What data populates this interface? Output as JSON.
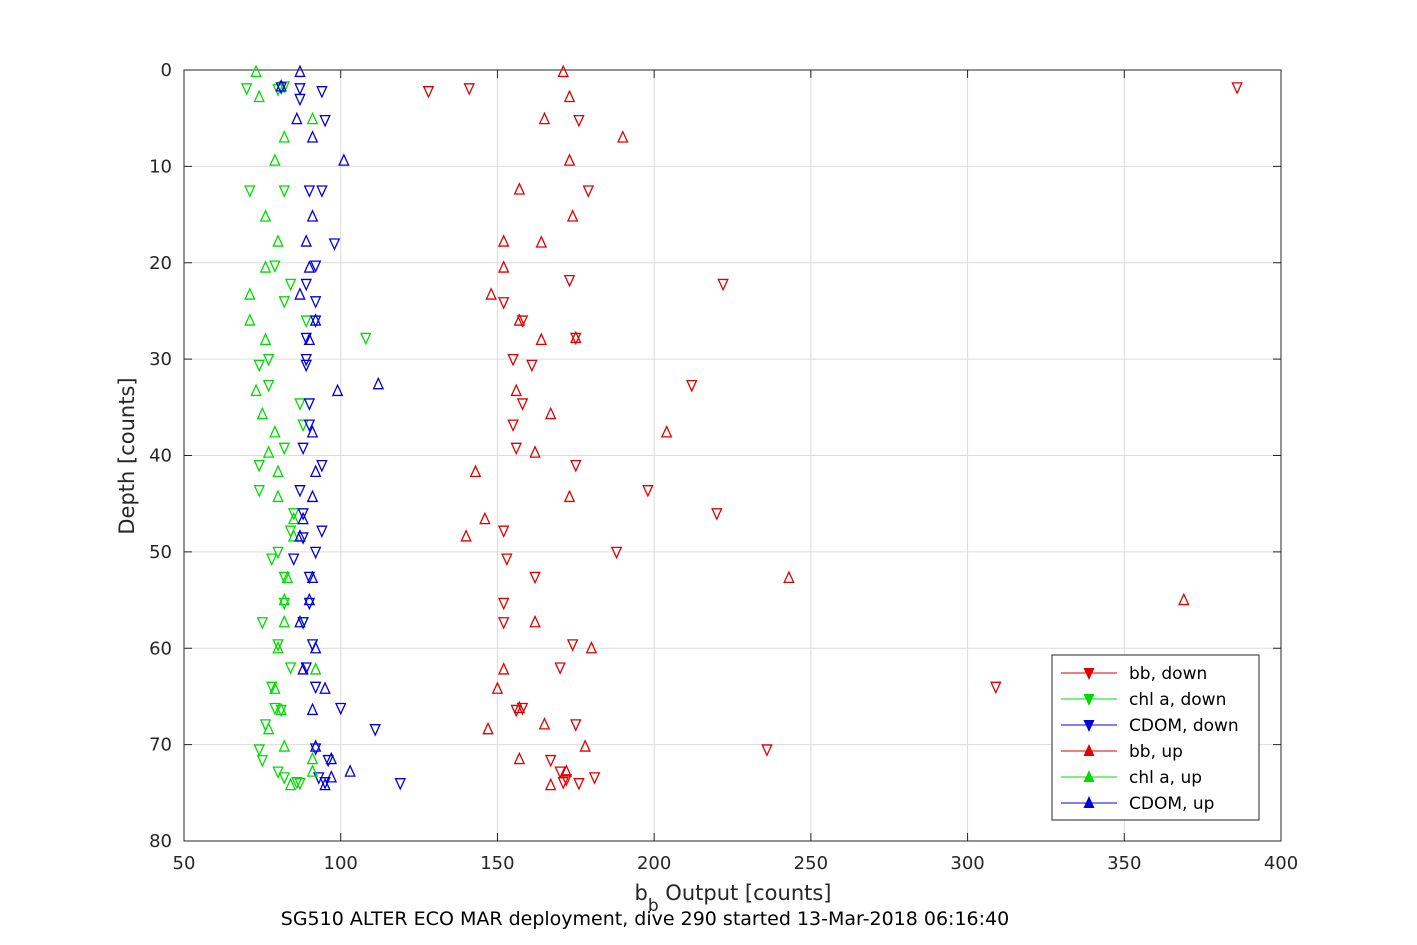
{
  "chart_data": {
    "type": "scatter",
    "xlabel_main": "b",
    "xlabel_sub": "b",
    "xlabel_rest": " Output [counts]",
    "ylabel": "Depth [counts]",
    "caption": "SG510 ALTER ECO MAR deployment, dive 290 started 13-Mar-2018 06:16:40",
    "xlim": [
      50,
      400
    ],
    "ylim": [
      0,
      80
    ],
    "y_reversed": true,
    "grid": true,
    "legend_position": "lower-right",
    "xticks": [
      "50",
      "100",
      "150",
      "200",
      "250",
      "300",
      "350",
      "400"
    ],
    "yticks": [
      "0",
      "10",
      "20",
      "30",
      "40",
      "50",
      "60",
      "70",
      "80"
    ],
    "series": [
      {
        "name": "bb, down",
        "color": "#e00000",
        "marker": "triangle-down",
        "points": [
          [
            386,
            1.8
          ],
          [
            128,
            2.2
          ],
          [
            141,
            1.9
          ],
          [
            176,
            5.2
          ],
          [
            179,
            12.5
          ],
          [
            173,
            21.8
          ],
          [
            222,
            22.2
          ],
          [
            158,
            26.0
          ],
          [
            152,
            24.1
          ],
          [
            175,
            27.8
          ],
          [
            155,
            30.0
          ],
          [
            161,
            30.6
          ],
          [
            212,
            32.7
          ],
          [
            158,
            34.6
          ],
          [
            155,
            36.8
          ],
          [
            156,
            39.2
          ],
          [
            175,
            41.0
          ],
          [
            198,
            43.6
          ],
          [
            220,
            46.0
          ],
          [
            152,
            47.8
          ],
          [
            188,
            50.0
          ],
          [
            153,
            50.7
          ],
          [
            162,
            52.6
          ],
          [
            152,
            55.3
          ],
          [
            152,
            57.3
          ],
          [
            174,
            59.6
          ],
          [
            170,
            62.0
          ],
          [
            309,
            64.0
          ],
          [
            158,
            66.2
          ],
          [
            156,
            66.4
          ],
          [
            175,
            67.9
          ],
          [
            236,
            70.5
          ],
          [
            167,
            71.6
          ],
          [
            170,
            72.8
          ],
          [
            181,
            73.4
          ],
          [
            172,
            73.6
          ],
          [
            171,
            73.9
          ],
          [
            176,
            74.0
          ]
        ]
      },
      {
        "name": "chl a, down",
        "color": "#00dc00",
        "marker": "triangle-down",
        "points": [
          [
            70,
            1.9
          ],
          [
            80,
            2.0
          ],
          [
            82,
            1.7
          ],
          [
            71,
            12.5
          ],
          [
            82,
            12.5
          ],
          [
            79,
            20.3
          ],
          [
            84,
            22.2
          ],
          [
            82,
            24.0
          ],
          [
            89,
            26.0
          ],
          [
            108,
            27.8
          ],
          [
            77,
            30.0
          ],
          [
            74,
            30.6
          ],
          [
            77,
            32.7
          ],
          [
            87,
            34.6
          ],
          [
            88,
            36.8
          ],
          [
            82,
            39.2
          ],
          [
            74,
            41.0
          ],
          [
            74,
            43.6
          ],
          [
            85,
            46.0
          ],
          [
            84,
            47.8
          ],
          [
            80,
            50.0
          ],
          [
            78,
            50.7
          ],
          [
            82,
            52.6
          ],
          [
            82,
            55.3
          ],
          [
            75,
            57.3
          ],
          [
            88,
            57.3
          ],
          [
            80,
            59.6
          ],
          [
            84,
            62.0
          ],
          [
            78,
            64.0
          ],
          [
            79,
            66.2
          ],
          [
            81,
            66.4
          ],
          [
            76,
            67.9
          ],
          [
            74,
            70.5
          ],
          [
            75,
            71.6
          ],
          [
            80,
            72.8
          ],
          [
            82,
            73.4
          ],
          [
            86,
            73.9
          ],
          [
            87,
            74.0
          ]
        ]
      },
      {
        "name": "CDOM, down",
        "color": "#0000dc",
        "marker": "triangle-down",
        "points": [
          [
            81,
            1.8
          ],
          [
            87,
            1.9
          ],
          [
            94,
            2.2
          ],
          [
            87,
            3.0
          ],
          [
            95,
            5.2
          ],
          [
            94,
            12.5
          ],
          [
            90,
            12.5
          ],
          [
            98,
            18.0
          ],
          [
            92,
            20.3
          ],
          [
            89,
            22.2
          ],
          [
            92,
            24.0
          ],
          [
            92,
            26.0
          ],
          [
            89,
            27.8
          ],
          [
            89,
            30.0
          ],
          [
            89,
            30.6
          ],
          [
            90,
            34.6
          ],
          [
            90,
            36.8
          ],
          [
            88,
            39.2
          ],
          [
            94,
            41.0
          ],
          [
            87,
            43.6
          ],
          [
            88,
            46.0
          ],
          [
            94,
            47.8
          ],
          [
            88,
            48.5
          ],
          [
            92,
            50.0
          ],
          [
            85,
            50.7
          ],
          [
            90,
            52.6
          ],
          [
            90,
            55.3
          ],
          [
            88,
            57.3
          ],
          [
            91,
            59.6
          ],
          [
            89,
            62.0
          ],
          [
            92,
            64.0
          ],
          [
            100,
            66.2
          ],
          [
            111,
            68.4
          ],
          [
            92,
            70.4
          ],
          [
            96,
            71.6
          ],
          [
            93,
            73.4
          ],
          [
            95,
            73.9
          ],
          [
            119,
            74.0
          ]
        ]
      },
      {
        "name": "bb, up",
        "color": "#e00000",
        "marker": "triangle-up",
        "points": [
          [
            171,
            0.2
          ],
          [
            173,
            2.8
          ],
          [
            165,
            5.1
          ],
          [
            190,
            7.0
          ],
          [
            173,
            9.4
          ],
          [
            157,
            12.4
          ],
          [
            174,
            15.2
          ],
          [
            152,
            17.8
          ],
          [
            164,
            17.9
          ],
          [
            152,
            20.5
          ],
          [
            148,
            23.3
          ],
          [
            157,
            26.0
          ],
          [
            164,
            28.0
          ],
          [
            175,
            27.8
          ],
          [
            167,
            35.7
          ],
          [
            156,
            33.3
          ],
          [
            204,
            37.6
          ],
          [
            162,
            39.7
          ],
          [
            143,
            41.7
          ],
          [
            173,
            44.3
          ],
          [
            146,
            46.6
          ],
          [
            140,
            48.4
          ],
          [
            243,
            52.7
          ],
          [
            369,
            55.0
          ],
          [
            162,
            57.3
          ],
          [
            180,
            60.0
          ],
          [
            152,
            62.2
          ],
          [
            150,
            64.2
          ],
          [
            157,
            66.2
          ],
          [
            147,
            68.4
          ],
          [
            165,
            67.9
          ],
          [
            178,
            70.2
          ],
          [
            157,
            71.5
          ],
          [
            172,
            72.8
          ],
          [
            167,
            74.2
          ]
        ]
      },
      {
        "name": "chl a, up",
        "color": "#00dc00",
        "marker": "triangle-up",
        "points": [
          [
            73,
            0.2
          ],
          [
            74,
            2.8
          ],
          [
            91,
            5.1
          ],
          [
            82,
            7.0
          ],
          [
            79,
            9.4
          ],
          [
            76,
            15.2
          ],
          [
            80,
            17.8
          ],
          [
            76,
            20.5
          ],
          [
            71,
            23.3
          ],
          [
            71,
            26.0
          ],
          [
            76,
            28.0
          ],
          [
            73,
            33.3
          ],
          [
            75,
            35.7
          ],
          [
            79,
            37.6
          ],
          [
            77,
            39.7
          ],
          [
            80,
            41.7
          ],
          [
            80,
            44.3
          ],
          [
            85,
            46.6
          ],
          [
            85,
            48.4
          ],
          [
            83,
            52.7
          ],
          [
            82,
            55.0
          ],
          [
            82,
            57.3
          ],
          [
            80,
            60.0
          ],
          [
            92,
            62.2
          ],
          [
            79,
            64.2
          ],
          [
            81,
            66.4
          ],
          [
            77,
            68.4
          ],
          [
            82,
            70.2
          ],
          [
            91,
            71.5
          ],
          [
            91,
            72.8
          ],
          [
            84,
            74.2
          ]
        ]
      },
      {
        "name": "CDOM, up",
        "color": "#0000dc",
        "marker": "triangle-up",
        "points": [
          [
            87,
            0.2
          ],
          [
            81,
            1.7
          ],
          [
            86,
            5.1
          ],
          [
            91,
            7.0
          ],
          [
            101,
            9.4
          ],
          [
            91,
            15.2
          ],
          [
            89,
            17.8
          ],
          [
            90,
            20.5
          ],
          [
            87,
            23.3
          ],
          [
            92,
            26.0
          ],
          [
            90,
            28.0
          ],
          [
            99,
            33.3
          ],
          [
            112,
            32.6
          ],
          [
            91,
            37.6
          ],
          [
            92,
            41.7
          ],
          [
            91,
            44.3
          ],
          [
            88,
            46.6
          ],
          [
            87,
            48.4
          ],
          [
            91,
            52.7
          ],
          [
            90,
            55.0
          ],
          [
            87,
            57.3
          ],
          [
            92,
            60.0
          ],
          [
            88,
            62.2
          ],
          [
            95,
            64.2
          ],
          [
            91,
            66.4
          ],
          [
            92,
            70.2
          ],
          [
            97,
            71.5
          ],
          [
            103,
            72.8
          ],
          [
            97,
            73.4
          ],
          [
            95,
            74.2
          ]
        ]
      }
    ]
  }
}
